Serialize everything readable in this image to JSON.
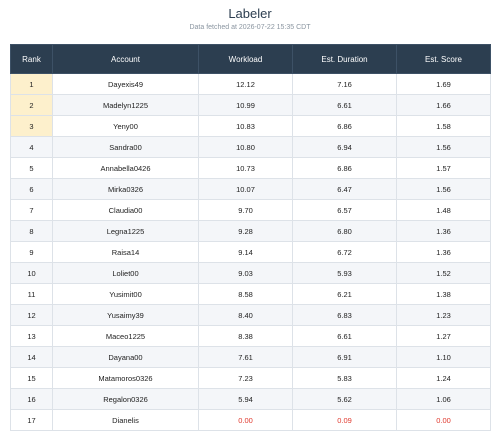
{
  "header": {
    "title": "Labeler",
    "subtitle": "Data fetched at 2026-07-22 15:35 CDT"
  },
  "table": {
    "columns": [
      "Rank",
      "Account",
      "Workload",
      "Est. Duration",
      "Est. Score"
    ],
    "rows": [
      [
        "1",
        "Dayexis49",
        "12.12",
        "7.16",
        "1.69"
      ],
      [
        "2",
        "Madelyn1225",
        "10.99",
        "6.61",
        "1.66"
      ],
      [
        "3",
        "Yeny00",
        "10.83",
        "6.86",
        "1.58"
      ],
      [
        "4",
        "Sandra00",
        "10.80",
        "6.94",
        "1.56"
      ],
      [
        "5",
        "Annabella0426",
        "10.73",
        "6.86",
        "1.57"
      ],
      [
        "6",
        "Mirka0326",
        "10.07",
        "6.47",
        "1.56"
      ],
      [
        "7",
        "Claudia00",
        "9.70",
        "6.57",
        "1.48"
      ],
      [
        "8",
        "Legna1225",
        "9.28",
        "6.80",
        "1.36"
      ],
      [
        "9",
        "Raisa14",
        "9.14",
        "6.72",
        "1.36"
      ],
      [
        "10",
        "Loliet00",
        "9.03",
        "5.93",
        "1.52"
      ],
      [
        "11",
        "Yusimit00",
        "8.58",
        "6.21",
        "1.38"
      ],
      [
        "12",
        "Yusaimy39",
        "8.40",
        "6.83",
        "1.23"
      ],
      [
        "13",
        "Maceo1225",
        "8.38",
        "6.61",
        "1.27"
      ],
      [
        "14",
        "Dayana00",
        "7.61",
        "6.91",
        "1.10"
      ],
      [
        "15",
        "Matamoros0326",
        "7.23",
        "5.83",
        "1.24"
      ],
      [
        "16",
        "Regalon0326",
        "5.94",
        "5.62",
        "1.06"
      ],
      [
        "17",
        "Dianelis",
        "0.00",
        "0.09",
        "0.00"
      ]
    ]
  }
}
